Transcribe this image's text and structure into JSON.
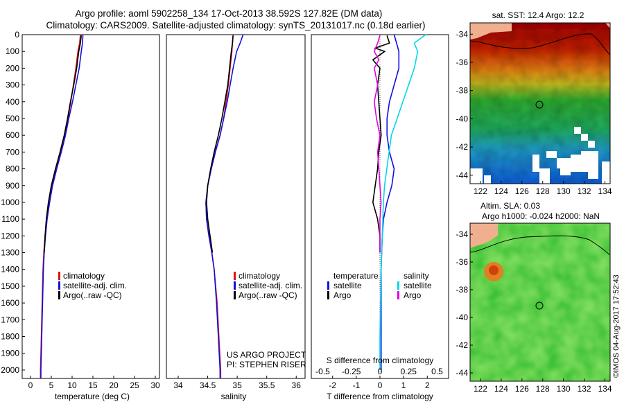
{
  "title_line1": "Argo profile: aoml 5902258_134 17-Oct-2013 38.592S 127.82E (DM data)",
  "title_line2": "Climatology: CARS2009. Satellite-adjusted climatology: synTS_20131017.nc (0.18d earlier)",
  "colors": {
    "clim": "#e01010",
    "sat": "#1010e0",
    "argo": "#000000",
    "sat_s": "#00d8e8",
    "argo_s": "#e000e0",
    "land": "#f0b090"
  },
  "depth_ticks": [
    "0",
    "100",
    "200",
    "300",
    "400",
    "500",
    "600",
    "700",
    "800",
    "900",
    "1000",
    "1100",
    "1200",
    "1300",
    "1400",
    "1500",
    "1600",
    "1700",
    "1800",
    "1900",
    "2000"
  ],
  "panel_temp": {
    "xlabel": "temperature (deg C)",
    "xticks": [
      "0",
      "5",
      "10",
      "15",
      "20",
      "25",
      "30"
    ],
    "legend": [
      "climatology",
      "satellite-adj. clim.",
      "Argo(..raw -QC)"
    ]
  },
  "panel_sal": {
    "xlabel": "salinity",
    "xticks": [
      "34",
      "34.5",
      "35",
      "35.5",
      "36"
    ],
    "legend": [
      "climatology",
      "satellite-adj. clim.",
      "Argo(..raw -QC)"
    ],
    "note1": "US ARGO PROJECT",
    "note2": "PI: STEPHEN RISER"
  },
  "panel_diff": {
    "xlabel": "T difference from climatology",
    "xlabel_top": "S difference from climatology",
    "xticks": [
      "-2",
      "-1",
      "0",
      "1",
      "2"
    ],
    "xticks_s": [
      "-0.5",
      "-0.25",
      "0",
      "0.25",
      "0.5"
    ],
    "legend_t_title": "temperature",
    "legend_s_title": "salinity",
    "legend_t": [
      "satellite",
      "Argo"
    ],
    "legend_s": [
      "satellite",
      "Argo"
    ]
  },
  "map_sst": {
    "title": "sat. SST: 12.4  Argo: 12.2",
    "lat_ticks": [
      "-34",
      "-36",
      "-38",
      "-40",
      "-42",
      "-44"
    ],
    "lon_ticks": [
      "122",
      "124",
      "126",
      "128",
      "130",
      "132",
      "134"
    ]
  },
  "map_sla": {
    "title1": "Altim. SLA: 0.03",
    "title2": "Argo h1000: -0.024 h2000: NaN",
    "lat_ticks": [
      "-34",
      "-36",
      "-38",
      "-40",
      "-42",
      "-44"
    ],
    "lon_ticks": [
      "122",
      "124",
      "126",
      "128",
      "130",
      "132",
      "134"
    ]
  },
  "stamp": "©IMOS 04-Aug-2017 17:52:43",
  "chart_data": [
    {
      "type": "line",
      "title": "temperature profile",
      "xlabel": "temperature (deg C)",
      "ylabel": "depth",
      "xlim": [
        -2,
        31
      ],
      "ylim": [
        2050,
        0
      ],
      "series": [
        {
          "name": "climatology",
          "depth": [
            0,
            50,
            100,
            200,
            300,
            400,
            500,
            600,
            700,
            800,
            900,
            1000,
            1100,
            1200,
            1300,
            1400,
            1600,
            1800,
            2000,
            2050
          ],
          "values": [
            12.0,
            11.8,
            11.4,
            10.9,
            10.3,
            9.7,
            9.0,
            8.2,
            7.3,
            6.2,
            5.2,
            4.5,
            3.9,
            3.5,
            3.2,
            3.0,
            2.8,
            2.6,
            2.4,
            2.4
          ]
        },
        {
          "name": "satellite-adj. clim.",
          "depth": [
            0,
            50,
            100,
            200,
            300,
            400,
            500,
            600,
            700,
            800,
            900,
            1000,
            1100,
            1200,
            1300,
            1400,
            1600,
            1800,
            2000,
            2050
          ],
          "values": [
            12.6,
            12.5,
            12.2,
            11.7,
            10.9,
            10.1,
            9.2,
            8.4,
            7.4,
            6.3,
            5.3,
            4.6,
            4.0,
            3.6,
            3.3,
            3.1,
            2.9,
            2.7,
            2.5,
            2.5
          ]
        },
        {
          "name": "Argo(..raw -QC)",
          "depth": [
            5,
            50,
            100,
            200,
            300,
            400,
            500,
            600,
            700,
            800,
            900,
            1000,
            1100,
            1200,
            1300
          ],
          "values": [
            12.2,
            12.0,
            11.6,
            11.1,
            10.4,
            9.6,
            8.9,
            8.1,
            7.1,
            6.0,
            5.0,
            4.3,
            3.8,
            3.5,
            3.3
          ]
        }
      ]
    },
    {
      "type": "line",
      "title": "salinity profile",
      "xlabel": "salinity",
      "ylabel": "depth",
      "xlim": [
        33.8,
        36.15
      ],
      "ylim": [
        2050,
        0
      ],
      "series": [
        {
          "name": "climatology",
          "depth": [
            0,
            50,
            100,
            200,
            300,
            400,
            500,
            600,
            700,
            800,
            900,
            1000,
            1100,
            1200,
            1300,
            1400,
            1600,
            1800,
            2000,
            2050
          ],
          "values": [
            34.93,
            34.92,
            34.91,
            34.88,
            34.85,
            34.81,
            34.77,
            34.71,
            34.63,
            34.56,
            34.5,
            34.47,
            34.48,
            34.52,
            34.57,
            34.61,
            34.66,
            34.69,
            34.72,
            34.72
          ]
        },
        {
          "name": "satellite-adj. clim.",
          "depth": [
            0,
            50,
            100,
            200,
            300,
            400,
            500,
            600,
            700,
            800,
            900,
            1000,
            1100,
            1200,
            1300,
            1400,
            1600,
            1800,
            2000,
            2050
          ],
          "values": [
            35.1,
            35.05,
            34.99,
            34.93,
            34.88,
            34.83,
            34.77,
            34.71,
            34.63,
            34.56,
            34.5,
            34.47,
            34.48,
            34.52,
            34.57,
            34.61,
            34.65,
            34.68,
            34.71,
            34.71
          ]
        },
        {
          "name": "Argo(..raw -QC)",
          "depth": [
            5,
            50,
            100,
            200,
            300,
            400,
            500,
            600,
            700,
            800,
            900,
            1000,
            1100,
            1200,
            1300
          ],
          "values": [
            34.93,
            34.92,
            34.9,
            34.87,
            34.84,
            34.79,
            34.74,
            34.68,
            34.61,
            34.55,
            34.5,
            34.48,
            34.5,
            34.54,
            34.58
          ]
        }
      ]
    },
    {
      "type": "line",
      "title": "difference from climatology",
      "xlabel": "T difference from climatology",
      "ylabel": "depth",
      "xlim": [
        -2.9,
        2.9
      ],
      "ylim": [
        2050,
        0
      ],
      "series": [
        {
          "name": "temperature satellite",
          "depth": [
            0,
            50,
            100,
            200,
            300,
            400,
            500,
            600,
            700,
            800,
            900,
            1000,
            1100,
            1200,
            1400,
            1800,
            2000
          ],
          "values": [
            0.6,
            0.7,
            0.8,
            0.8,
            0.6,
            0.4,
            0.3,
            0.3,
            0.4,
            0.6,
            0.5,
            0.3,
            0.15,
            0.1,
            0.05,
            0.05,
            0.05
          ]
        },
        {
          "name": "temperature Argo",
          "depth": [
            5,
            50,
            80,
            100,
            150,
            200,
            300,
            400,
            500,
            600,
            700,
            800,
            900,
            1000,
            1100,
            1200,
            1300
          ],
          "values": [
            0.3,
            0.4,
            -0.2,
            0.2,
            -0.3,
            0.0,
            -0.1,
            -0.05,
            0.0,
            0.05,
            -0.05,
            -0.1,
            -0.2,
            -0.3,
            -0.1,
            0.0,
            0.0
          ]
        },
        {
          "name": "salinity satellite",
          "depth": [
            0,
            50,
            100,
            200,
            300,
            400,
            500,
            600,
            700,
            800,
            900,
            1000,
            1200,
            1400,
            1800,
            2000
          ],
          "values": [
            0.4,
            0.3,
            0.33,
            0.3,
            0.25,
            0.2,
            0.15,
            0.1,
            0.08,
            0.06,
            0.04,
            0.03,
            0.02,
            0.01,
            0.0,
            0.0
          ]
        },
        {
          "name": "salinity Argo",
          "depth": [
            5,
            50,
            100,
            150,
            200,
            300,
            400,
            500,
            600,
            700,
            800,
            900,
            1000,
            1100,
            1200,
            1300
          ],
          "values": [
            0.0,
            -0.02,
            -0.05,
            -0.01,
            -0.05,
            -0.02,
            -0.05,
            -0.03,
            0.0,
            -0.02,
            -0.01,
            0.0,
            0.01,
            0.0,
            0.0,
            0.0
          ]
        }
      ]
    }
  ]
}
